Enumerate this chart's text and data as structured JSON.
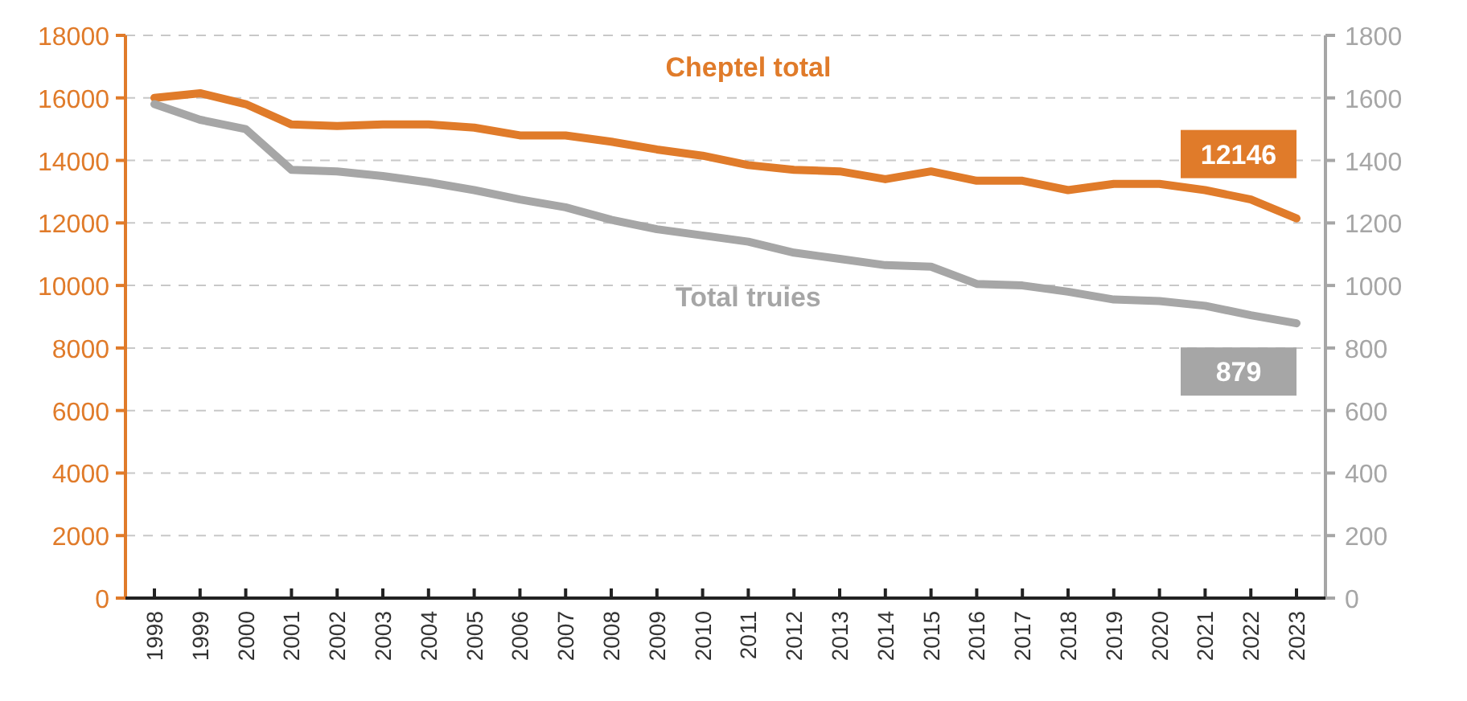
{
  "chart_data": {
    "type": "line",
    "categories": [
      "1998",
      "1999",
      "2000",
      "2001",
      "2002",
      "2003",
      "2004",
      "2005",
      "2006",
      "2007",
      "2008",
      "2009",
      "2010",
      "2011",
      "2012",
      "2013",
      "2014",
      "2015",
      "2016",
      "2017",
      "2018",
      "2019",
      "2020",
      "2021",
      "2022",
      "2023"
    ],
    "series": [
      {
        "name": "Cheptel total",
        "color": "#e07b2a",
        "values": [
          16000,
          16150,
          15800,
          15150,
          15100,
          15150,
          15150,
          15050,
          14800,
          14800,
          14600,
          14350,
          14150,
          13850,
          13700,
          13650,
          13400,
          13650,
          13350,
          13350,
          13050,
          13250,
          13250,
          13050,
          12750,
          12146
        ],
        "value_labels": [
          null,
          null,
          null,
          null,
          null,
          null,
          null,
          null,
          null,
          null,
          null,
          null,
          null,
          null,
          null,
          null,
          null,
          null,
          null,
          null,
          null,
          null,
          null,
          null,
          null,
          "12146"
        ]
      },
      {
        "name": "Total truies",
        "color": "#a6a6a6",
        "axis": "y2",
        "values": [
          1580,
          1530,
          1500,
          1370,
          1365,
          1350,
          1330,
          1305,
          1275,
          1250,
          1210,
          1180,
          1160,
          1140,
          1105,
          1085,
          1065,
          1060,
          1005,
          1000,
          980,
          955,
          950,
          935,
          905,
          879
        ],
        "value_labels": [
          null,
          null,
          null,
          null,
          null,
          null,
          null,
          null,
          null,
          null,
          null,
          null,
          null,
          null,
          null,
          null,
          null,
          null,
          null,
          null,
          null,
          null,
          null,
          null,
          null,
          "879"
        ]
      }
    ],
    "ylim": [
      0,
      18000
    ],
    "yticks": [
      0,
      2000,
      4000,
      6000,
      8000,
      10000,
      12000,
      14000,
      16000,
      18000
    ],
    "y2lim": [
      0,
      1800
    ],
    "y2ticks": [
      0,
      200,
      400,
      600,
      800,
      1000,
      1200,
      1400,
      1600,
      1800
    ],
    "grid": "y",
    "line_style": "solid",
    "marker": "none",
    "legend": false
  }
}
